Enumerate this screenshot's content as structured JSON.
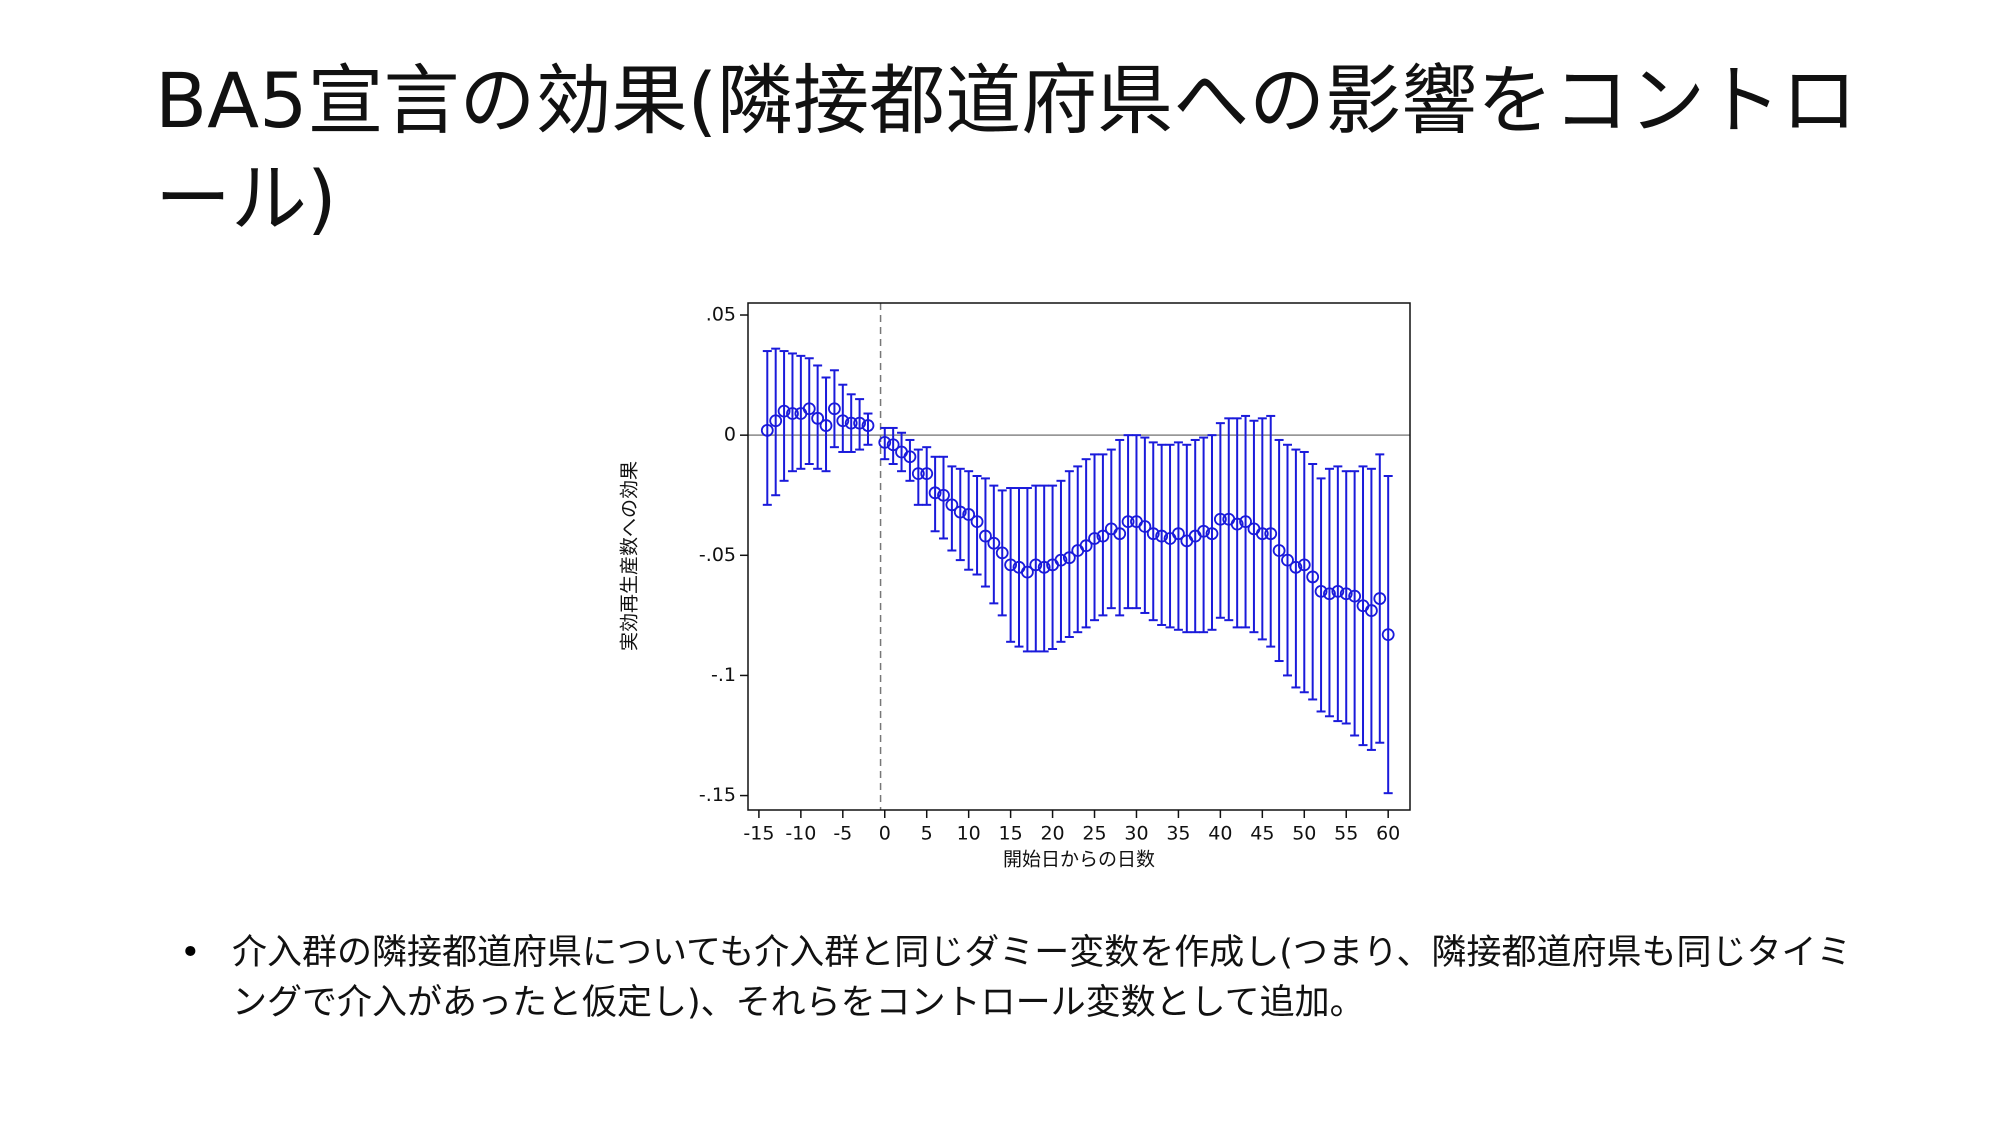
{
  "title": "BA5宣言の効果(隣接都道府県への影響をコントロール)",
  "bullets": [
    "介入群の隣接都道府県についても介入群と同じダミー変数を作成し(つまり、隣接都道府県も同じタイミングで介入があったと仮定し)、それらをコントロール変数として追加。"
  ],
  "chart_data": {
    "type": "errorbar",
    "xlabel": "開始日からの日数",
    "ylabel": "実効再生産数への効果",
    "x": [
      -14,
      -13,
      -12,
      -11,
      -10,
      -9,
      -8,
      -7,
      -6,
      -5,
      -4,
      -3,
      -2,
      0,
      1,
      2,
      3,
      4,
      5,
      6,
      7,
      8,
      9,
      10,
      11,
      12,
      13,
      14,
      15,
      16,
      17,
      18,
      19,
      20,
      21,
      22,
      23,
      24,
      25,
      26,
      27,
      28,
      29,
      30,
      31,
      32,
      33,
      34,
      35,
      36,
      37,
      38,
      39,
      40,
      41,
      42,
      43,
      44,
      45,
      46,
      47,
      48,
      49,
      50,
      51,
      52,
      53,
      54,
      55,
      56,
      57,
      58,
      59,
      60
    ],
    "values": [
      0.002,
      0.006,
      0.01,
      0.009,
      0.009,
      0.011,
      0.007,
      0.004,
      0.011,
      0.006,
      0.005,
      0.005,
      0.004,
      -0.003,
      -0.004,
      -0.007,
      -0.009,
      -0.016,
      -0.016,
      -0.024,
      -0.025,
      -0.029,
      -0.032,
      -0.033,
      -0.036,
      -0.042,
      -0.045,
      -0.049,
      -0.054,
      -0.055,
      -0.057,
      -0.054,
      -0.055,
      -0.054,
      -0.052,
      -0.051,
      -0.048,
      -0.046,
      -0.043,
      -0.042,
      -0.039,
      -0.041,
      -0.036,
      -0.036,
      -0.038,
      -0.041,
      -0.042,
      -0.043,
      -0.041,
      -0.044,
      -0.042,
      -0.04,
      -0.041,
      -0.035,
      -0.035,
      -0.037,
      -0.036,
      -0.039,
      -0.041,
      -0.041,
      -0.048,
      -0.052,
      -0.055,
      -0.054,
      -0.059,
      -0.065,
      -0.066,
      -0.065,
      -0.066,
      -0.067,
      -0.071,
      -0.073,
      -0.068,
      -0.083
    ],
    "ci_lower": [
      -0.029,
      -0.025,
      -0.019,
      -0.015,
      -0.014,
      -0.012,
      -0.014,
      -0.015,
      -0.005,
      -0.007,
      -0.007,
      -0.006,
      -0.004,
      -0.01,
      -0.012,
      -0.015,
      -0.019,
      -0.029,
      -0.029,
      -0.04,
      -0.043,
      -0.048,
      -0.052,
      -0.056,
      -0.058,
      -0.063,
      -0.07,
      -0.075,
      -0.086,
      -0.088,
      -0.09,
      -0.09,
      -0.09,
      -0.089,
      -0.086,
      -0.084,
      -0.082,
      -0.08,
      -0.077,
      -0.075,
      -0.072,
      -0.075,
      -0.072,
      -0.072,
      -0.074,
      -0.077,
      -0.079,
      -0.08,
      -0.081,
      -0.082,
      -0.082,
      -0.082,
      -0.081,
      -0.076,
      -0.077,
      -0.08,
      -0.08,
      -0.082,
      -0.085,
      -0.088,
      -0.094,
      -0.1,
      -0.105,
      -0.107,
      -0.11,
      -0.115,
      -0.117,
      -0.119,
      -0.12,
      -0.125,
      -0.129,
      -0.131,
      -0.128,
      -0.149
    ],
    "ci_upper": [
      0.035,
      0.036,
      0.035,
      0.034,
      0.033,
      0.032,
      0.029,
      0.024,
      0.027,
      0.021,
      0.017,
      0.015,
      0.009,
      0.003,
      0.003,
      0.001,
      -0.002,
      -0.006,
      -0.005,
      -0.009,
      -0.009,
      -0.013,
      -0.014,
      -0.015,
      -0.017,
      -0.018,
      -0.021,
      -0.023,
      -0.022,
      -0.022,
      -0.022,
      -0.021,
      -0.021,
      -0.021,
      -0.019,
      -0.015,
      -0.013,
      -0.01,
      -0.008,
      -0.008,
      -0.006,
      -0.002,
      0.0,
      0.0,
      -0.001,
      -0.003,
      -0.004,
      -0.004,
      -0.003,
      -0.004,
      -0.002,
      -0.001,
      0.0,
      0.005,
      0.007,
      0.007,
      0.008,
      0.006,
      0.007,
      0.008,
      -0.002,
      -0.004,
      -0.006,
      -0.007,
      -0.012,
      -0.018,
      -0.014,
      -0.013,
      -0.015,
      -0.015,
      -0.013,
      -0.014,
      -0.008,
      -0.017
    ],
    "color": "#1a1adb",
    "xlim": [
      -16.3,
      62.6
    ],
    "xticks": [
      -15,
      -10,
      -5,
      0,
      5,
      10,
      15,
      20,
      25,
      30,
      35,
      40,
      45,
      50,
      55,
      60
    ],
    "ylim": [
      -0.156,
      0.055
    ],
    "yticks": [
      {
        "value": 0.05,
        "label": ".05"
      },
      0,
      {
        "value": -0.05,
        "label": "-.05"
      },
      {
        "value": -0.1,
        "label": "-.1"
      },
      {
        "value": -0.15,
        "label": "-.15"
      }
    ],
    "xline": -0.5,
    "yline": 0
  }
}
